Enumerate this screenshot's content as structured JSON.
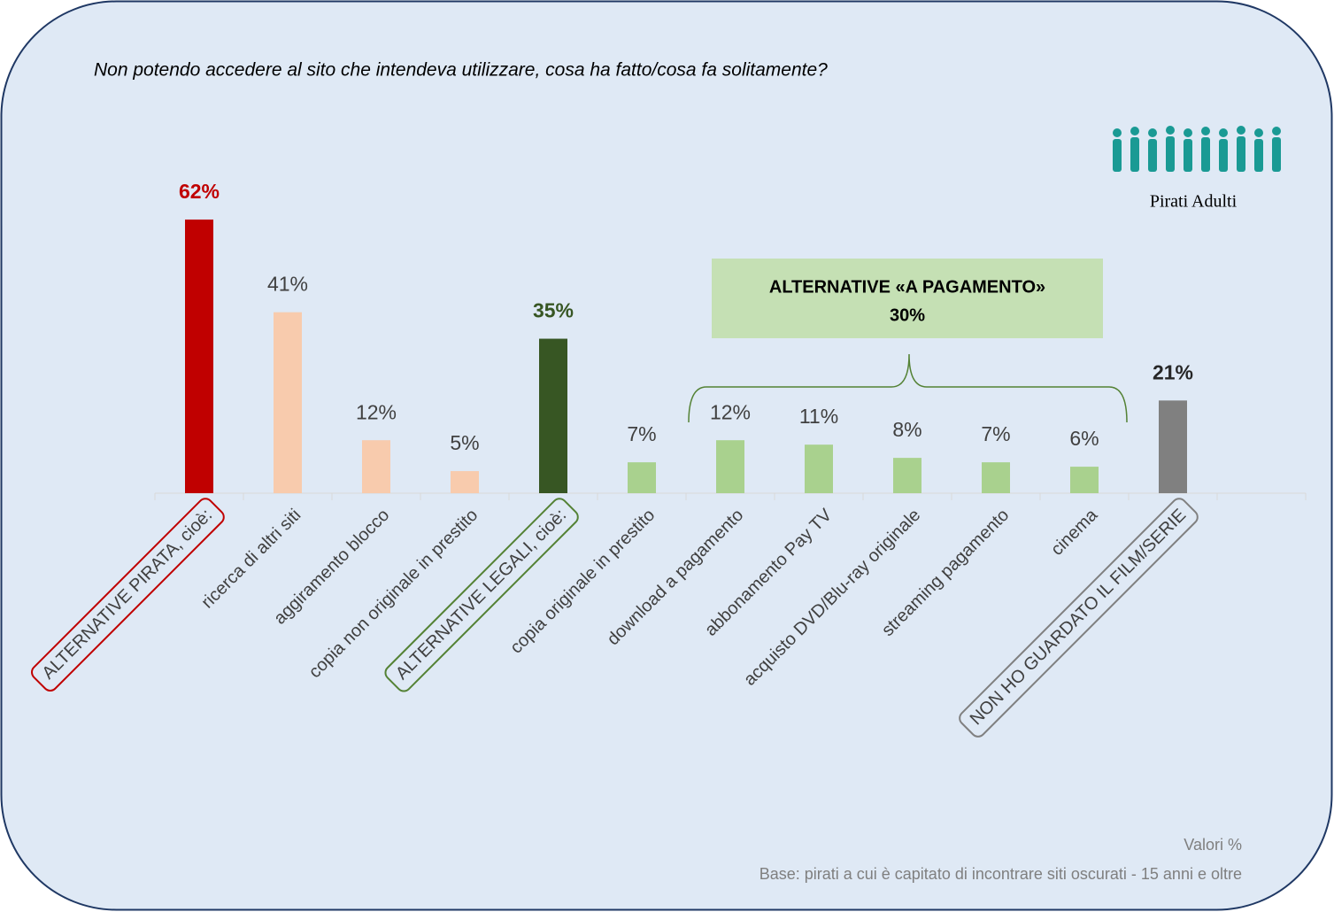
{
  "chart_data": {
    "type": "bar",
    "title": "Non potendo accedere al sito che intendeva utilizzare, cosa ha fatto/cosa fa solitamente?",
    "legend_label": "Pirati Adulti",
    "categories": [
      "ALTERNATIVE PIRATA, cioè:",
      "ricerca di altri siti",
      "aggiramento blocco",
      "copia non originale in prestito",
      "ALTERNATIVE LEGALI, cioè:",
      "copia originale in prestito",
      "download a pagamento",
      "abbonamento Pay TV",
      "acquisto DVD/Blu-ray originale",
      "streaming pagamento",
      "cinema",
      "NON HO GUARDATO IL FILM/SERIE"
    ],
    "values": [
      62,
      41,
      12,
      5,
      35,
      7,
      12,
      11,
      8,
      7,
      6,
      21
    ],
    "value_labels": [
      "62%",
      "41%",
      "12%",
      "5%",
      "35%",
      "7%",
      "12%",
      "11%",
      "8%",
      "7%",
      "6%",
      "21%"
    ],
    "colors": [
      "#c00000",
      "#f8cbad",
      "#f8cbad",
      "#f8cbad",
      "#375623",
      "#a9d18e",
      "#a9d18e",
      "#a9d18e",
      "#a9d18e",
      "#a9d18e",
      "#a9d18e",
      "#808080"
    ],
    "label_colors": [
      "#c00000",
      "#404040",
      "#404040",
      "#404040",
      "#375623",
      "#404040",
      "#404040",
      "#404040",
      "#404040",
      "#404040",
      "#404040",
      "#262626"
    ],
    "boxed": [
      "#c00000",
      null,
      null,
      null,
      "#548235",
      null,
      null,
      null,
      null,
      null,
      null,
      "#808080"
    ],
    "ylim": [
      0,
      65
    ],
    "bracket": {
      "label": "ALTERNATIVE «A PAGAMENTO»",
      "value": 30,
      "value_label": "30%"
    },
    "notes": [
      "Valori %",
      "Base: pirati a cui è capitato di incontrare siti oscurati - 15 anni e oltre"
    ]
  }
}
